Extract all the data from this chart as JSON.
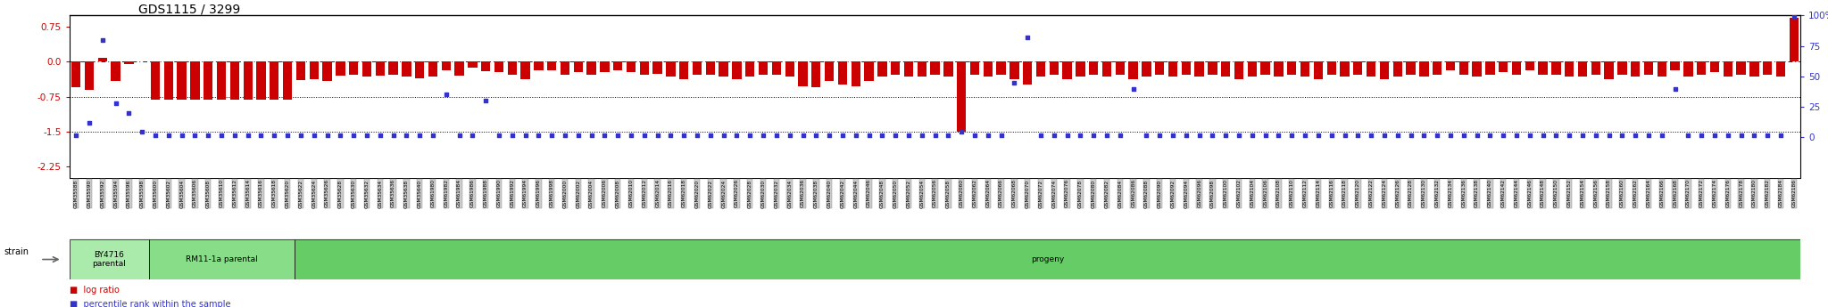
{
  "title": "GDS1115 / 3299",
  "left_yticks": [
    0.75,
    0.0,
    -0.75,
    -1.5,
    -2.25
  ],
  "right_yticks": [
    100,
    75,
    50,
    25,
    0
  ],
  "right_ytick_labels": [
    "100%",
    "75",
    "50",
    "25",
    "0"
  ],
  "ylim_left": [
    -2.5,
    1.0
  ],
  "ylim_right": [
    -33.33,
    100.0
  ],
  "by4716_count": 6,
  "rm11_count": 11,
  "group_labels": [
    "BY4716\nparental",
    "RM11-1a parental",
    "progeny"
  ],
  "legend_items": [
    "log ratio",
    "percentile rank within the sample"
  ],
  "legend_colors_hex": [
    "#CC0000",
    "#3333CC"
  ],
  "bar_color": "#CC0000",
  "dot_color": "#3333CC",
  "sample_labels": [
    "GSM35588",
    "GSM35590",
    "GSM35592",
    "GSM35594",
    "GSM35596",
    "GSM35598",
    "GSM35600",
    "GSM35602",
    "GSM35604",
    "GSM35606",
    "GSM35608",
    "GSM35610",
    "GSM35612",
    "GSM35614",
    "GSM35616",
    "GSM35618",
    "GSM35620",
    "GSM35622",
    "GSM35624",
    "GSM35626",
    "GSM35628",
    "GSM35630",
    "GSM35632",
    "GSM35634",
    "GSM35636",
    "GSM35638",
    "GSM35640",
    "GSM61980",
    "GSM61982",
    "GSM61984",
    "GSM61986",
    "GSM61988",
    "GSM61990",
    "GSM61992",
    "GSM61994",
    "GSM61996",
    "GSM61998",
    "GSM62000",
    "GSM62002",
    "GSM62004",
    "GSM62006",
    "GSM62008",
    "GSM62010",
    "GSM62012",
    "GSM62014",
    "GSM62016",
    "GSM62018",
    "GSM62020",
    "GSM62022",
    "GSM62024",
    "GSM62026",
    "GSM62028",
    "GSM62030",
    "GSM62032",
    "GSM62034",
    "GSM62036",
    "GSM62038",
    "GSM62040",
    "GSM62042",
    "GSM62044",
    "GSM62046",
    "GSM62048",
    "GSM62050",
    "GSM62052",
    "GSM62054",
    "GSM62056",
    "GSM62058",
    "GSM62060",
    "GSM62062",
    "GSM62064",
    "GSM62066",
    "GSM62068",
    "GSM62070",
    "GSM62072",
    "GSM62074",
    "GSM62076",
    "GSM62078",
    "GSM62080",
    "GSM62082",
    "GSM62084",
    "GSM62086",
    "GSM62088",
    "GSM62090",
    "GSM62092",
    "GSM62094",
    "GSM62096",
    "GSM62098",
    "GSM62100",
    "GSM62102",
    "GSM62104",
    "GSM62106",
    "GSM62108",
    "GSM62110",
    "GSM62112",
    "GSM62114",
    "GSM62116",
    "GSM62118",
    "GSM62120",
    "GSM62122",
    "GSM62124",
    "GSM62126",
    "GSM62128",
    "GSM62130",
    "GSM62132",
    "GSM62134",
    "GSM62136",
    "GSM62138",
    "GSM62140",
    "GSM62142",
    "GSM62144",
    "GSM62146",
    "GSM62148",
    "GSM62150",
    "GSM62152",
    "GSM62154",
    "GSM62156",
    "GSM62158",
    "GSM62160",
    "GSM62162",
    "GSM62164",
    "GSM62166",
    "GSM62168",
    "GSM62170",
    "GSM62172",
    "GSM62174",
    "GSM62176",
    "GSM62178",
    "GSM62180",
    "GSM62182",
    "GSM62184",
    "GSM62186"
  ],
  "log_ratios": [
    -0.55,
    -0.6,
    0.08,
    -0.42,
    -0.05,
    0.0,
    -0.82,
    -0.82,
    -0.82,
    -0.82,
    -0.82,
    -0.82,
    -0.82,
    -0.82,
    -0.82,
    -0.82,
    -0.82,
    -0.4,
    -0.38,
    -0.42,
    -0.3,
    -0.28,
    -0.32,
    -0.3,
    -0.28,
    -0.32,
    -0.35,
    -0.32,
    -0.18,
    -0.3,
    -0.12,
    -0.2,
    -0.22,
    -0.28,
    -0.38,
    -0.18,
    -0.18,
    -0.28,
    -0.22,
    -0.28,
    -0.22,
    -0.18,
    -0.22,
    -0.28,
    -0.25,
    -0.32,
    -0.38,
    -0.28,
    -0.28,
    -0.32,
    -0.38,
    -0.32,
    -0.28,
    -0.28,
    -0.32,
    -0.52,
    -0.55,
    -0.42,
    -0.48,
    -0.52,
    -0.42,
    -0.32,
    -0.28,
    -0.32,
    -0.32,
    -0.28,
    -0.32,
    -1.5,
    -0.28,
    -0.32,
    -0.28,
    -0.38,
    -0.48,
    -0.32,
    -0.28,
    -0.38,
    -0.32,
    -0.28,
    -0.32,
    -0.28,
    -0.38,
    -0.32,
    -0.28,
    -0.32,
    -0.28,
    -0.32,
    -0.28,
    -0.32,
    -0.38,
    -0.32,
    -0.28,
    -0.32,
    -0.28,
    -0.32,
    -0.38,
    -0.28,
    -0.32,
    -0.28,
    -0.32,
    -0.38,
    -0.32,
    -0.28,
    -0.32,
    -0.28,
    -0.18,
    -0.28,
    -0.32,
    -0.28,
    -0.22,
    -0.28,
    -0.18,
    -0.28,
    -0.28,
    -0.32,
    -0.32,
    -0.28,
    -0.38,
    -0.28,
    -0.32,
    -0.28,
    -0.32,
    -0.18,
    -0.32,
    -0.28,
    -0.22,
    -0.32,
    -0.28,
    -0.32,
    -0.28,
    -0.32,
    0.95
  ],
  "percentile_ranks": [
    2,
    12,
    80,
    28,
    20,
    5,
    2,
    2,
    2,
    2,
    2,
    2,
    2,
    2,
    2,
    2,
    2,
    2,
    2,
    2,
    2,
    2,
    2,
    2,
    2,
    2,
    2,
    2,
    35,
    2,
    2,
    30,
    2,
    2,
    2,
    2,
    2,
    2,
    2,
    2,
    2,
    2,
    2,
    2,
    2,
    2,
    2,
    2,
    2,
    2,
    2,
    2,
    2,
    2,
    2,
    2,
    2,
    2,
    2,
    2,
    2,
    2,
    2,
    2,
    2,
    2,
    2,
    5,
    2,
    2,
    2,
    45,
    82,
    2,
    2,
    2,
    2,
    2,
    2,
    2,
    40,
    2,
    2,
    2,
    2,
    2,
    2,
    2,
    2,
    2,
    2,
    2,
    2,
    2,
    2,
    2,
    2,
    2,
    2,
    2,
    2,
    2,
    2,
    2,
    2,
    2,
    2,
    2,
    2,
    2,
    2,
    2,
    2,
    2,
    2,
    2,
    2,
    2,
    2,
    2,
    2,
    40,
    2,
    2,
    2,
    2,
    2,
    2,
    2,
    2,
    99
  ]
}
